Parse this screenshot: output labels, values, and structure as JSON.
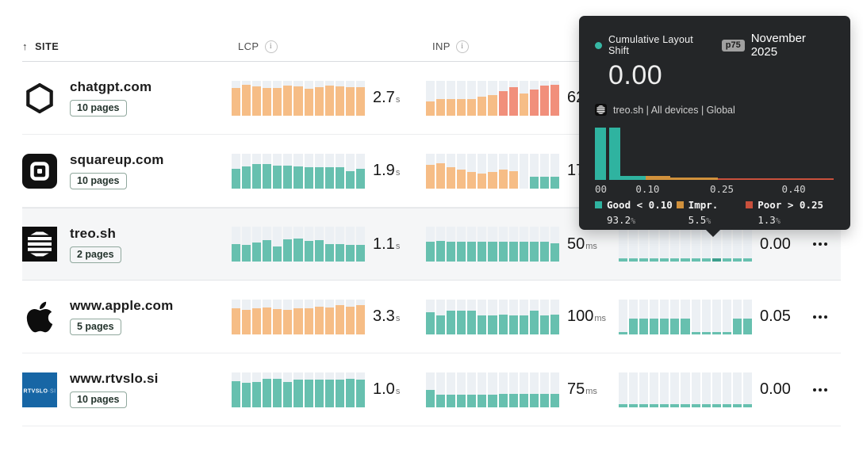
{
  "colors": {
    "orange": "#f6bd86",
    "salmon": "#f18f7b",
    "teal": "#67c0af",
    "tealDark": "#3d9f8d",
    "histTeal": "#2fb3a0",
    "histOrange": "#d1913c",
    "histRed": "#c9503c",
    "gap": "#242628",
    "columnBg": "#ecf0f4"
  },
  "header": {
    "sort_icon": "↑",
    "site_label": "SITE",
    "lcp_label": "LCP",
    "inp_label": "INP",
    "info_glyph": "i"
  },
  "rows": [
    {
      "site": "chatgpt.com",
      "pages": "10 pages",
      "logo": "chatgpt",
      "lcp": {
        "value": "2.7",
        "unit": "s",
        "bars": [
          {
            "h": 0.78,
            "c": "orange"
          },
          {
            "h": 0.87,
            "c": "orange"
          },
          {
            "h": 0.82,
            "c": "orange"
          },
          {
            "h": 0.79,
            "c": "orange"
          },
          {
            "h": 0.79,
            "c": "orange"
          },
          {
            "h": 0.85,
            "c": "orange"
          },
          {
            "h": 0.82,
            "c": "orange"
          },
          {
            "h": 0.76,
            "c": "orange"
          },
          {
            "h": 0.8,
            "c": "orange"
          },
          {
            "h": 0.85,
            "c": "orange"
          },
          {
            "h": 0.82,
            "c": "orange"
          },
          {
            "h": 0.8,
            "c": "orange"
          },
          {
            "h": 0.8,
            "c": "orange"
          }
        ]
      },
      "inp": {
        "value": "62",
        "unit": "",
        "bars": [
          {
            "h": 0.4,
            "c": "orange"
          },
          {
            "h": 0.47,
            "c": "orange"
          },
          {
            "h": 0.47,
            "c": "orange"
          },
          {
            "h": 0.47,
            "c": "orange"
          },
          {
            "h": 0.47,
            "c": "orange"
          },
          {
            "h": 0.53,
            "c": "orange"
          },
          {
            "h": 0.58,
            "c": "orange"
          },
          {
            "h": 0.7,
            "c": "salmon"
          },
          {
            "h": 0.8,
            "c": "salmon"
          },
          {
            "h": 0.63,
            "c": "orange"
          },
          {
            "h": 0.75,
            "c": "salmon"
          },
          {
            "h": 0.85,
            "c": "salmon"
          },
          {
            "h": 0.88,
            "c": "salmon"
          }
        ]
      },
      "cls": null
    },
    {
      "site": "squareup.com",
      "pages": "10 pages",
      "logo": "square",
      "lcp": {
        "value": "1.9",
        "unit": "s",
        "bars": [
          {
            "h": 0.55,
            "c": "teal"
          },
          {
            "h": 0.63,
            "c": "teal"
          },
          {
            "h": 0.69,
            "c": "teal"
          },
          {
            "h": 0.69,
            "c": "teal"
          },
          {
            "h": 0.64,
            "c": "teal"
          },
          {
            "h": 0.64,
            "c": "teal"
          },
          {
            "h": 0.62,
            "c": "teal"
          },
          {
            "h": 0.6,
            "c": "teal"
          },
          {
            "h": 0.6,
            "c": "teal"
          },
          {
            "h": 0.6,
            "c": "teal"
          },
          {
            "h": 0.6,
            "c": "teal"
          },
          {
            "h": 0.5,
            "c": "teal"
          },
          {
            "h": 0.55,
            "c": "teal"
          }
        ]
      },
      "inp": {
        "value": "17",
        "unit": "",
        "bars": [
          {
            "h": 0.68,
            "c": "orange"
          },
          {
            "h": 0.72,
            "c": "orange"
          },
          {
            "h": 0.6,
            "c": "orange"
          },
          {
            "h": 0.54,
            "c": "orange"
          },
          {
            "h": 0.47,
            "c": "orange"
          },
          {
            "h": 0.42,
            "c": "orange"
          },
          {
            "h": 0.47,
            "c": "orange"
          },
          {
            "h": 0.54,
            "c": "orange"
          },
          {
            "h": 0.5,
            "c": "orange"
          },
          {
            "h": 0,
            "c": "teal"
          },
          {
            "h": 0.33,
            "c": "teal"
          },
          {
            "h": 0.33,
            "c": "teal"
          },
          {
            "h": 0.33,
            "c": "teal"
          }
        ]
      },
      "cls": null
    },
    {
      "site": "treo.sh",
      "pages": "2 pages",
      "logo": "treo",
      "highlighted": true,
      "lcp": {
        "value": "1.1",
        "unit": "s",
        "bars": [
          {
            "h": 0.5,
            "c": "teal"
          },
          {
            "h": 0.47,
            "c": "teal"
          },
          {
            "h": 0.55,
            "c": "teal"
          },
          {
            "h": 0.62,
            "c": "teal"
          },
          {
            "h": 0.43,
            "c": "teal"
          },
          {
            "h": 0.64,
            "c": "teal"
          },
          {
            "h": 0.66,
            "c": "teal"
          },
          {
            "h": 0.6,
            "c": "teal"
          },
          {
            "h": 0.61,
            "c": "teal"
          },
          {
            "h": 0.5,
            "c": "teal"
          },
          {
            "h": 0.51,
            "c": "teal"
          },
          {
            "h": 0.47,
            "c": "teal"
          },
          {
            "h": 0.47,
            "c": "teal"
          }
        ]
      },
      "inp": {
        "value": "50",
        "unit": "ms",
        "bars": [
          {
            "h": 0.56,
            "c": "teal"
          },
          {
            "h": 0.58,
            "c": "teal"
          },
          {
            "h": 0.56,
            "c": "teal"
          },
          {
            "h": 0.56,
            "c": "teal"
          },
          {
            "h": 0.56,
            "c": "teal"
          },
          {
            "h": 0.56,
            "c": "teal"
          },
          {
            "h": 0.57,
            "c": "teal"
          },
          {
            "h": 0.56,
            "c": "teal"
          },
          {
            "h": 0.56,
            "c": "teal"
          },
          {
            "h": 0.56,
            "c": "teal"
          },
          {
            "h": 0.56,
            "c": "teal"
          },
          {
            "h": 0.56,
            "c": "teal"
          },
          {
            "h": 0.53,
            "c": "teal"
          }
        ]
      },
      "cls": {
        "value": "0.00",
        "unit": "",
        "bars": [
          {
            "h": 0.08,
            "c": "teal"
          },
          {
            "h": 0.08,
            "c": "teal"
          },
          {
            "h": 0.08,
            "c": "teal"
          },
          {
            "h": 0.08,
            "c": "teal"
          },
          {
            "h": 0.08,
            "c": "teal"
          },
          {
            "h": 0.08,
            "c": "teal"
          },
          {
            "h": 0.08,
            "c": "teal"
          },
          {
            "h": 0.08,
            "c": "teal"
          },
          {
            "h": 0.08,
            "c": "teal"
          },
          {
            "h": 0.1,
            "c": "tealDark"
          },
          {
            "h": 0.08,
            "c": "teal"
          },
          {
            "h": 0.08,
            "c": "teal"
          },
          {
            "h": 0.08,
            "c": "teal"
          }
        ]
      }
    },
    {
      "site": "www.apple.com",
      "pages": "5 pages",
      "logo": "apple",
      "lcp": {
        "value": "3.3",
        "unit": "s",
        "bars": [
          {
            "h": 0.74,
            "c": "orange"
          },
          {
            "h": 0.7,
            "c": "orange"
          },
          {
            "h": 0.74,
            "c": "orange"
          },
          {
            "h": 0.77,
            "c": "orange"
          },
          {
            "h": 0.72,
            "c": "orange"
          },
          {
            "h": 0.7,
            "c": "orange"
          },
          {
            "h": 0.74,
            "c": "orange"
          },
          {
            "h": 0.74,
            "c": "orange"
          },
          {
            "h": 0.79,
            "c": "orange"
          },
          {
            "h": 0.76,
            "c": "orange"
          },
          {
            "h": 0.84,
            "c": "orange"
          },
          {
            "h": 0.78,
            "c": "orange"
          },
          {
            "h": 0.82,
            "c": "orange"
          }
        ]
      },
      "inp": {
        "value": "100",
        "unit": "ms",
        "bars": [
          {
            "h": 0.63,
            "c": "teal"
          },
          {
            "h": 0.53,
            "c": "teal"
          },
          {
            "h": 0.66,
            "c": "teal"
          },
          {
            "h": 0.66,
            "c": "teal"
          },
          {
            "h": 0.66,
            "c": "teal"
          },
          {
            "h": 0.53,
            "c": "teal"
          },
          {
            "h": 0.53,
            "c": "teal"
          },
          {
            "h": 0.56,
            "c": "teal"
          },
          {
            "h": 0.53,
            "c": "teal"
          },
          {
            "h": 0.53,
            "c": "teal"
          },
          {
            "h": 0.66,
            "c": "teal"
          },
          {
            "h": 0.53,
            "c": "teal"
          },
          {
            "h": 0.56,
            "c": "teal"
          }
        ]
      },
      "cls": {
        "value": "0.05",
        "unit": "",
        "bars": [
          {
            "h": 0.06,
            "c": "teal"
          },
          {
            "h": 0.45,
            "c": "teal"
          },
          {
            "h": 0.45,
            "c": "teal"
          },
          {
            "h": 0.45,
            "c": "teal"
          },
          {
            "h": 0.45,
            "c": "teal"
          },
          {
            "h": 0.45,
            "c": "teal"
          },
          {
            "h": 0.45,
            "c": "teal"
          },
          {
            "h": 0.06,
            "c": "teal"
          },
          {
            "h": 0.06,
            "c": "teal"
          },
          {
            "h": 0.06,
            "c": "teal"
          },
          {
            "h": 0.06,
            "c": "teal"
          },
          {
            "h": 0.45,
            "c": "teal"
          },
          {
            "h": 0.45,
            "c": "teal"
          }
        ]
      }
    },
    {
      "site": "www.rtvslo.si",
      "pages": "10 pages",
      "logo": "rtvslo",
      "lcp": {
        "value": "1.0",
        "unit": "s",
        "bars": [
          {
            "h": 0.74,
            "c": "teal"
          },
          {
            "h": 0.7,
            "c": "teal"
          },
          {
            "h": 0.72,
            "c": "teal"
          },
          {
            "h": 0.8,
            "c": "teal"
          },
          {
            "h": 0.8,
            "c": "teal"
          },
          {
            "h": 0.72,
            "c": "teal"
          },
          {
            "h": 0.79,
            "c": "teal"
          },
          {
            "h": 0.79,
            "c": "teal"
          },
          {
            "h": 0.79,
            "c": "teal"
          },
          {
            "h": 0.79,
            "c": "teal"
          },
          {
            "h": 0.79,
            "c": "teal"
          },
          {
            "h": 0.8,
            "c": "teal"
          },
          {
            "h": 0.78,
            "c": "teal"
          }
        ]
      },
      "inp": {
        "value": "75",
        "unit": "ms",
        "bars": [
          {
            "h": 0.5,
            "c": "teal"
          },
          {
            "h": 0.36,
            "c": "teal"
          },
          {
            "h": 0.36,
            "c": "teal"
          },
          {
            "h": 0.36,
            "c": "teal"
          },
          {
            "h": 0.36,
            "c": "teal"
          },
          {
            "h": 0.36,
            "c": "teal"
          },
          {
            "h": 0.36,
            "c": "teal"
          },
          {
            "h": 0.37,
            "c": "teal"
          },
          {
            "h": 0.37,
            "c": "teal"
          },
          {
            "h": 0.37,
            "c": "teal"
          },
          {
            "h": 0.38,
            "c": "teal"
          },
          {
            "h": 0.38,
            "c": "teal"
          },
          {
            "h": 0.38,
            "c": "teal"
          }
        ]
      },
      "cls": {
        "value": "0.00",
        "unit": "",
        "bars": [
          {
            "h": 0.07,
            "c": "teal"
          },
          {
            "h": 0.07,
            "c": "teal"
          },
          {
            "h": 0.07,
            "c": "teal"
          },
          {
            "h": 0.07,
            "c": "teal"
          },
          {
            "h": 0.07,
            "c": "teal"
          },
          {
            "h": 0.07,
            "c": "teal"
          },
          {
            "h": 0.07,
            "c": "teal"
          },
          {
            "h": 0.07,
            "c": "teal"
          },
          {
            "h": 0.07,
            "c": "teal"
          },
          {
            "h": 0.07,
            "c": "teal"
          },
          {
            "h": 0.07,
            "c": "teal"
          },
          {
            "h": 0.07,
            "c": "teal"
          },
          {
            "h": 0.07,
            "c": "teal"
          }
        ]
      }
    }
  ],
  "tooltip": {
    "metric": "Cumulative Layout Shift",
    "percentile": "p75",
    "month": "November 2025",
    "value": "0.00",
    "context": "treo.sh | All devices | Global",
    "chart_data": {
      "type": "area",
      "title": "Cumulative Layout Shift distribution",
      "x_ticks": [
        "00",
        "0.10",
        "0.25",
        "0.40"
      ],
      "segments": [
        {
          "w": 4.6,
          "h": 1.0,
          "c": "histTeal"
        },
        {
          "w": 1.3,
          "h": 1.0,
          "c": "gap"
        },
        {
          "w": 4.6,
          "h": 1.0,
          "c": "histTeal"
        },
        {
          "w": 10.8,
          "h": 0.08,
          "c": "histTeal"
        },
        {
          "w": 10.2,
          "h": 0.07,
          "c": "histOrange"
        },
        {
          "w": 19.7,
          "h": 0.045,
          "c": "histOrange"
        },
        {
          "w": 48.4,
          "h": 0.035,
          "c": "histRed"
        }
      ]
    },
    "legend": [
      {
        "label": "Good < 0.10",
        "pct": "93.2",
        "sign": "%",
        "c": "histTeal"
      },
      {
        "label": "Impr.",
        "pct": "5.5",
        "sign": "%",
        "c": "histOrange"
      },
      {
        "label": "Poor > 0.25",
        "pct": "1.3",
        "sign": "%",
        "c": "histRed"
      }
    ]
  }
}
